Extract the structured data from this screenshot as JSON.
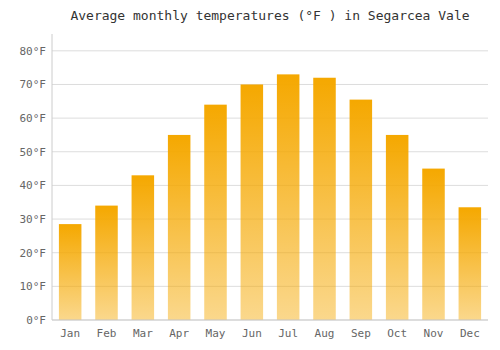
{
  "chart_data": {
    "type": "bar",
    "title": "Average monthly temperatures (°F ) in Segarcea Vale",
    "categories": [
      "Jan",
      "Feb",
      "Mar",
      "Apr",
      "May",
      "Jun",
      "Jul",
      "Aug",
      "Sep",
      "Oct",
      "Nov",
      "Dec"
    ],
    "values": [
      28.5,
      34,
      43,
      55,
      64,
      70,
      73,
      72,
      65.5,
      55,
      45,
      33.5
    ],
    "color": "#F5A800",
    "ylim": [
      0,
      85
    ],
    "yticks": [
      {
        "value": 0,
        "label": "0°F"
      },
      {
        "value": 10,
        "label": "10°F"
      },
      {
        "value": 20,
        "label": "20°F"
      },
      {
        "value": 30,
        "label": "30°F"
      },
      {
        "value": 40,
        "label": "40°F"
      },
      {
        "value": 50,
        "label": "50°F"
      },
      {
        "value": 60,
        "label": "60°F"
      },
      {
        "value": 70,
        "label": "70°F"
      },
      {
        "value": 80,
        "label": "80°F"
      }
    ],
    "grid": true
  }
}
